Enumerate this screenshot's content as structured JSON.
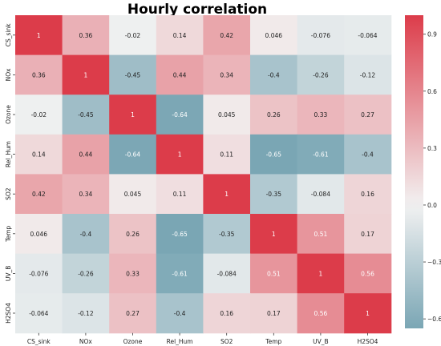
{
  "chart_data": {
    "type": "heatmap",
    "title": "Hourly correlation",
    "xlabel": "",
    "ylabel": "",
    "x_categories": [
      "CS_sink",
      "NOx",
      "Ozone",
      "Rel_Hum",
      "SO2",
      "Temp",
      "UV_B",
      "H2SO4"
    ],
    "y_categories": [
      "CS_sink",
      "NOx",
      "Ozone",
      "Rel_Hum",
      "SO2",
      "Temp",
      "UV_B",
      "H2SO4"
    ],
    "values": [
      [
        1,
        0.36,
        -0.02,
        0.14,
        0.42,
        0.046,
        -0.076,
        -0.064
      ],
      [
        0.36,
        1,
        -0.45,
        0.44,
        0.34,
        -0.4,
        -0.26,
        -0.12
      ],
      [
        -0.02,
        -0.45,
        1,
        -0.64,
        0.045,
        0.26,
        0.33,
        0.27
      ],
      [
        0.14,
        0.44,
        -0.64,
        1,
        0.11,
        -0.65,
        -0.61,
        -0.4
      ],
      [
        0.42,
        0.34,
        0.045,
        0.11,
        1,
        -0.35,
        -0.084,
        0.16
      ],
      [
        0.046,
        -0.4,
        0.26,
        -0.65,
        -0.35,
        1,
        0.51,
        0.17
      ],
      [
        -0.076,
        -0.26,
        0.33,
        -0.61,
        -0.084,
        0.51,
        1,
        0.56
      ],
      [
        -0.064,
        -0.12,
        0.27,
        -0.4,
        0.16,
        0.17,
        0.56,
        1
      ]
    ],
    "colorbar": {
      "ticks": [
        0.9,
        0.6,
        0.3,
        0.0,
        -0.3,
        -0.6
      ],
      "tick_labels": [
        "0.9",
        "0.6",
        "0.3",
        "0.0",
        "−0.3",
        "−0.6"
      ],
      "range": [
        -0.65,
        1
      ]
    },
    "colors": {
      "negative": "#7aa6b4",
      "neutral": "#f2f2f2",
      "positive": "#dc3c4a",
      "annotation_dark": "#222222",
      "annotation_light": "#ffffff"
    }
  }
}
